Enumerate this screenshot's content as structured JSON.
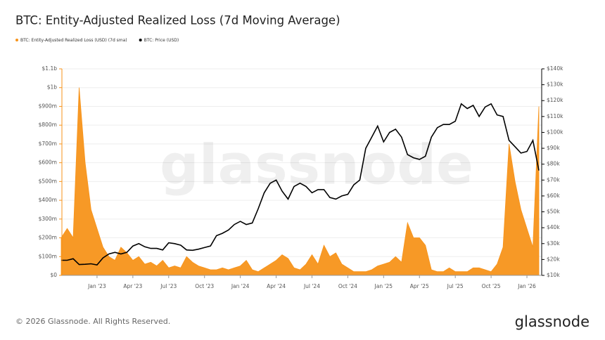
{
  "chart_data": {
    "type": "area-line",
    "title": "BTC: Entity-Adjusted Realized Loss (7d Moving Average)",
    "watermark": "glassnode",
    "footer": "© 2026 Glassnode. All Rights Reserved.",
    "logo": "glassnode",
    "grid": true,
    "legend": "top-left",
    "categories": [
      null,
      null,
      null,
      null,
      null,
      null,
      "Jan '23",
      null,
      null,
      null,
      null,
      null,
      "Apr '23",
      null,
      null,
      null,
      null,
      null,
      "Jul '23",
      null,
      null,
      null,
      null,
      null,
      "Oct '23",
      null,
      null,
      null,
      null,
      null,
      "Jan '24",
      null,
      null,
      null,
      null,
      null,
      "Apr '24",
      null,
      null,
      null,
      null,
      null,
      "Jul '24",
      null,
      null,
      null,
      null,
      null,
      "Oct '24",
      null,
      null,
      null,
      null,
      null,
      "Jan '25",
      null,
      null,
      null,
      null,
      null,
      "Apr '25",
      null,
      null,
      null,
      null,
      null,
      "Jul '25",
      null,
      null,
      null,
      null,
      null,
      "Oct '25",
      null,
      null,
      null,
      null,
      null,
      "Jan '26",
      null,
      null
    ],
    "series": [
      {
        "name": "BTC: Entity-Adjusted Realized Loss (USD) (7d sma)",
        "color": "#f7931a",
        "axis": "y",
        "values": [
          200000000,
          250000000,
          200000000,
          1000000000,
          600000000,
          350000000,
          250000000,
          150000000,
          100000000,
          80000000,
          150000000,
          120000000,
          80000000,
          100000000,
          60000000,
          70000000,
          50000000,
          80000000,
          40000000,
          50000000,
          40000000,
          100000000,
          70000000,
          50000000,
          40000000,
          30000000,
          30000000,
          40000000,
          30000000,
          40000000,
          50000000,
          80000000,
          30000000,
          20000000,
          40000000,
          60000000,
          80000000,
          110000000,
          90000000,
          40000000,
          30000000,
          60000000,
          110000000,
          60000000,
          160000000,
          100000000,
          120000000,
          60000000,
          40000000,
          20000000,
          20000000,
          20000000,
          30000000,
          50000000,
          60000000,
          70000000,
          100000000,
          70000000,
          280000000,
          200000000,
          200000000,
          160000000,
          30000000,
          20000000,
          20000000,
          40000000,
          20000000,
          20000000,
          20000000,
          40000000,
          40000000,
          30000000,
          20000000,
          60000000,
          150000000,
          700000000,
          500000000,
          350000000,
          250000000,
          150000000,
          900000000
        ]
      },
      {
        "name": "BTC: Price (USD)",
        "color": "#000000",
        "axis": "y2",
        "values": [
          19500,
          19500,
          20500,
          16800,
          17000,
          17300,
          16600,
          21000,
          23500,
          24500,
          23500,
          24500,
          28500,
          30000,
          28000,
          27000,
          27000,
          26000,
          30500,
          30000,
          29000,
          26000,
          25800,
          26500,
          27500,
          28500,
          35000,
          36500,
          38500,
          42000,
          44000,
          42000,
          43000,
          52000,
          62000,
          68000,
          70000,
          63000,
          58000,
          66000,
          68000,
          66000,
          62000,
          64000,
          64000,
          59000,
          58000,
          60000,
          61000,
          67000,
          70000,
          90000,
          97000,
          104000,
          94000,
          100000,
          102000,
          97000,
          86000,
          84000,
          83000,
          85000,
          97000,
          103000,
          105000,
          105000,
          107000,
          118000,
          115000,
          117000,
          110000,
          116000,
          118000,
          111000,
          110000,
          95000,
          91000,
          87000,
          88000,
          95000,
          76000
        ]
      }
    ],
    "ylim": [
      0,
      1100000000
    ],
    "yticks": [
      {
        "value": 0,
        "label": "$0"
      },
      {
        "value": 100000000,
        "label": "$100m"
      },
      {
        "value": 200000000,
        "label": "$200m"
      },
      {
        "value": 300000000,
        "label": "$300m"
      },
      {
        "value": 400000000,
        "label": "$400m"
      },
      {
        "value": 500000000,
        "label": "$500m"
      },
      {
        "value": 600000000,
        "label": "$600m"
      },
      {
        "value": 700000000,
        "label": "$700m"
      },
      {
        "value": 800000000,
        "label": "$800m"
      },
      {
        "value": 900000000,
        "label": "$900m"
      },
      {
        "value": 1000000000,
        "label": "$1b"
      },
      {
        "value": 1100000000,
        "label": "$1.1b"
      }
    ],
    "y2lim": [
      10000,
      140000
    ],
    "y2ticks": [
      {
        "value": 10000,
        "label": "$10k"
      },
      {
        "value": 20000,
        "label": "$20k"
      },
      {
        "value": 30000,
        "label": "$30k"
      },
      {
        "value": 40000,
        "label": "$40k"
      },
      {
        "value": 50000,
        "label": "$50k"
      },
      {
        "value": 60000,
        "label": "$60k"
      },
      {
        "value": 70000,
        "label": "$70k"
      },
      {
        "value": 80000,
        "label": "$80k"
      },
      {
        "value": 90000,
        "label": "$90k"
      },
      {
        "value": 100000,
        "label": "$100k"
      },
      {
        "value": 110000,
        "label": "$110k"
      },
      {
        "value": 120000,
        "label": "$120k"
      },
      {
        "value": 130000,
        "label": "$130k"
      },
      {
        "value": 140000,
        "label": "$140k"
      }
    ]
  }
}
